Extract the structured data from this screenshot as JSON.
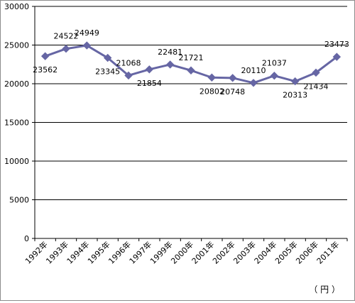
{
  "chart_data": {
    "type": "line",
    "categories": [
      "1992年",
      "1993年",
      "1994年",
      "1995年",
      "1996年",
      "1997年",
      "1999年",
      "2000年",
      "2001年",
      "2002年",
      "2003年",
      "2004年",
      "2005年",
      "2006年",
      "2011年"
    ],
    "series": [
      {
        "values": [
          23562,
          24522,
          24949,
          23345,
          21068,
          21854,
          22481,
          21721,
          20802,
          20748,
          20110,
          21037,
          20313,
          21434,
          23473
        ],
        "color": "#6666a4"
      }
    ],
    "data_labels": [
      "23562",
      "24522",
      "24949",
      "23345",
      "21068",
      "21854",
      "22481",
      "21721",
      "20802",
      "20748",
      "20110",
      "21037",
      "20313",
      "21434",
      "23473"
    ],
    "y_ticks": [
      0,
      5000,
      10000,
      15000,
      20000,
      25000,
      30000
    ],
    "y_tick_labels": [
      "0",
      "5000",
      "10000",
      "15000",
      "20000",
      "25000",
      "30000"
    ],
    "ylim": [
      0,
      30000
    ],
    "grid": "horizontal",
    "marker": "diamond",
    "unit_label": "（ 円 ）"
  }
}
